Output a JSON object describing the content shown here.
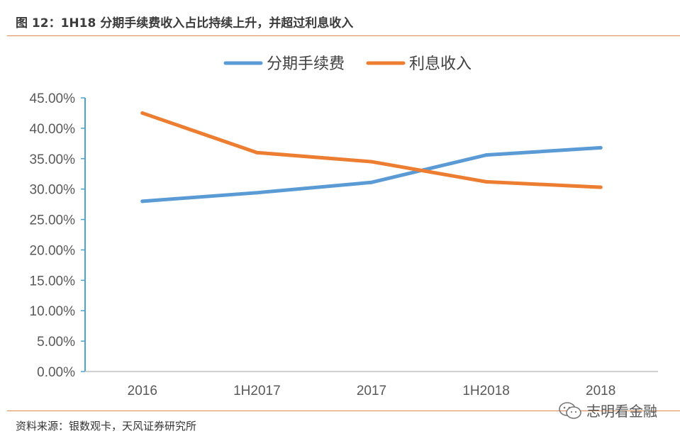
{
  "figure": {
    "title": "图 12：1H18 分期手续费收入占比持续上升，并超过利息收入",
    "source": "资料来源：银数观卡，天风证券研究所",
    "watermark": "志明看金融"
  },
  "colors": {
    "rule": "#e08a52",
    "axis": "#4ea1d3",
    "series_fee": "#5b9bd5",
    "series_interest": "#ed7d31",
    "tick_text": "#595959"
  },
  "chart_data": {
    "type": "line",
    "categories": [
      "2016",
      "1H2017",
      "2017",
      "1H2018",
      "2018"
    ],
    "series": [
      {
        "name": "分期手续费",
        "values": [
          28.0,
          29.4,
          31.1,
          35.6,
          36.8
        ]
      },
      {
        "name": "利息收入",
        "values": [
          42.5,
          36.0,
          34.5,
          31.2,
          30.3
        ]
      }
    ],
    "ylim": [
      0,
      45
    ],
    "yticks": [
      "0.00%",
      "5.00%",
      "10.00%",
      "15.00%",
      "20.00%",
      "25.00%",
      "30.00%",
      "35.00%",
      "40.00%",
      "45.00%"
    ],
    "ytick_values": [
      0,
      5,
      10,
      15,
      20,
      25,
      30,
      35,
      40,
      45
    ],
    "legend_position": "top",
    "grid": false
  }
}
